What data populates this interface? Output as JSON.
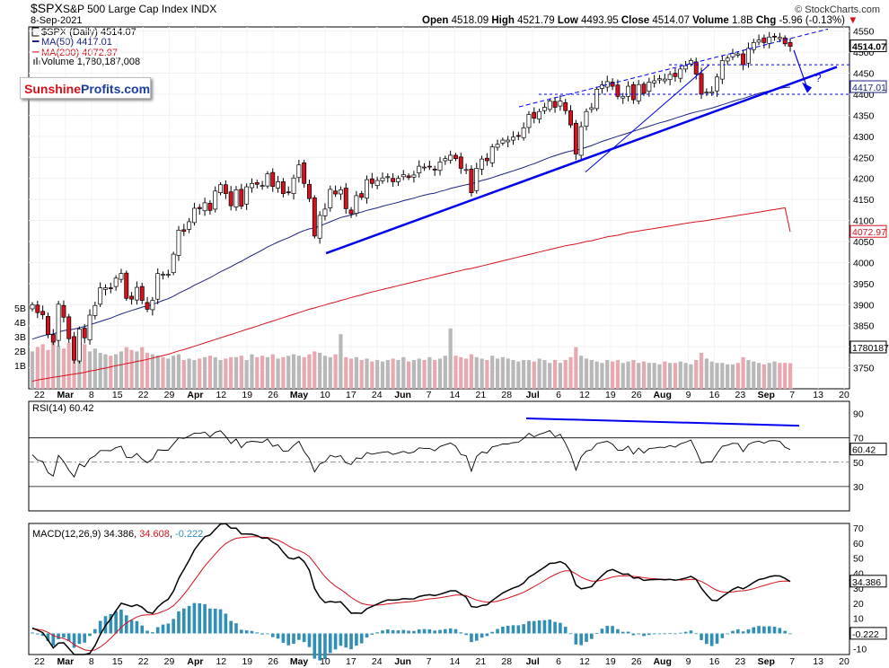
{
  "header": {
    "symbol": "$SPX",
    "name": "S&P 500 Large Cap Index",
    "exchange": "INDX",
    "date": "8-Sep-2021",
    "source": "© StockCharts.com",
    "open_label": "Open",
    "open": "4518.09",
    "high_label": "High",
    "high": "4521.79",
    "low_label": "Low",
    "low": "4493.95",
    "close_label": "Close",
    "close": "4514.07",
    "volume_label": "Volume",
    "volume": "1.8B",
    "chg_label": "Chg",
    "chg": "-5.96 (-0.13%)"
  },
  "legend": {
    "price": "$SPX (Daily) 4514.07",
    "ma50": "MA(50) 4417.01",
    "ma200": "MA(200) 4072.97",
    "volume": "Volume 1,780,187,008"
  },
  "logo": {
    "part1": "Sunshine",
    "part2": "Profits.com"
  },
  "price_labels": {
    "close": "4514.07",
    "ma50": "4417.01",
    "ma200": "4072.97",
    "volume": "1780187",
    "rsi": "60.42",
    "macd": "34.386",
    "hist": "-0.222"
  },
  "rsi_legend": "RSI(14) 60.42",
  "macd_legend": {
    "label": "MACD(12,26,9)",
    "macd": "34.386",
    "signal": "34.608",
    "hist": "-0.222"
  },
  "annotation_q": "?",
  "colors": {
    "up": "#ffffff",
    "down": "#d6101c",
    "ma50": "#1a237e",
    "ma200": "#d6101c",
    "trend": "#0000ee",
    "hist": "#2f8fb5",
    "vol_up": "#b8b8b8",
    "vol_down": "#e8a8b0"
  },
  "chart_data": {
    "type": "candlestick",
    "price_axis": {
      "ticks": [
        3750,
        3800,
        3850,
        3900,
        3950,
        4000,
        4050,
        4100,
        4150,
        4200,
        4250,
        4300,
        4350,
        4400,
        4450,
        4500,
        4550
      ],
      "range": [
        3700,
        4560
      ]
    },
    "volume_axis": {
      "ticks": [
        "1B",
        "2B",
        "3B",
        "4B",
        "5B"
      ]
    },
    "rsi_axis": {
      "ticks": [
        30,
        50,
        70,
        90
      ],
      "range": [
        10,
        100
      ]
    },
    "macd_axis": {
      "ticks": [
        -10,
        0,
        10,
        20,
        30,
        40,
        50,
        60,
        70
      ],
      "range": [
        -14,
        73
      ]
    },
    "x_labels": [
      "22",
      "Mar",
      "8",
      "15",
      "22",
      "29",
      "Apr",
      "12",
      "19",
      "26",
      "May",
      "10",
      "17",
      "24",
      "Jun",
      "7",
      "14",
      "21",
      "28",
      "Jul",
      "6",
      "12",
      "19",
      "26",
      "Aug",
      "9",
      "16",
      "23",
      "Sep",
      "7",
      "13",
      "20"
    ],
    "close": [
      3900,
      3881,
      3876,
      3829,
      3811,
      3901,
      3870,
      3819,
      3768,
      3842,
      3821,
      3875,
      3898,
      3940,
      3940,
      3939,
      3963,
      3974,
      3915,
      3913,
      3941,
      3910,
      3889,
      3910,
      3974,
      3972,
      3972,
      4020,
      4077,
      4074,
      4097,
      4129,
      4128,
      4142,
      4124,
      4170,
      4185,
      4164,
      4135,
      4173,
      4134,
      4180,
      4188,
      4186,
      4183,
      4211,
      4181,
      4192,
      4164,
      4167,
      4201,
      4232,
      4188,
      4152,
      4063,
      4112,
      4127,
      4174,
      4163,
      4173,
      4128,
      4116,
      4159,
      4155,
      4197,
      4188,
      4195,
      4201,
      4204,
      4192,
      4200,
      4209,
      4202,
      4208,
      4229,
      4227,
      4227,
      4220,
      4239,
      4247,
      4255,
      4247,
      4224,
      4221,
      4166,
      4224,
      4246,
      4242,
      4275,
      4281,
      4291,
      4291,
      4298,
      4300,
      4320,
      4352,
      4343,
      4359,
      4369,
      4384,
      4369,
      4384,
      4361,
      4327,
      4258,
      4323,
      4359,
      4368,
      4412,
      4422,
      4430,
      4419,
      4395,
      4395,
      4419,
      4387,
      4423,
      4402,
      4429,
      4432,
      4437,
      4436,
      4447,
      4442,
      4460,
      4468,
      4480,
      4448,
      4400,
      4405,
      4406,
      4441,
      4480,
      4486,
      4497,
      4496,
      4470,
      4509,
      4523,
      4529,
      4523,
      4536,
      4537,
      4535,
      4520,
      4514
    ],
    "ma50": [
      3818,
      3822,
      3826,
      3829,
      3830,
      3835,
      3838,
      3840,
      3842,
      3845,
      3848,
      3852,
      3856,
      3860,
      3864,
      3868,
      3873,
      3878,
      3882,
      3886,
      3890,
      3894,
      3897,
      3900,
      3905,
      3910,
      3914,
      3920,
      3927,
      3933,
      3939,
      3946,
      3952,
      3958,
      3964,
      3971,
      3978,
      3984,
      3990,
      3997,
      4003,
      4010,
      4017,
      4023,
      4030,
      4037,
      4043,
      4049,
      4054,
      4059,
      4065,
      4071,
      4076,
      4080,
      4082,
      4087,
      4092,
      4097,
      4102,
      4107,
      4110,
      4113,
      4117,
      4120,
      4124,
      4127,
      4130,
      4134,
      4137,
      4140,
      4143,
      4147,
      4150,
      4153,
      4157,
      4160,
      4163,
      4165,
      4169,
      4172,
      4176,
      4179,
      4182,
      4185,
      4187,
      4191,
      4195,
      4198,
      4202,
      4206,
      4210,
      4214,
      4218,
      4222,
      4226,
      4231,
      4235,
      4240,
      4245,
      4250,
      4254,
      4258,
      4262,
      4265,
      4267,
      4270,
      4274,
      4278,
      4283,
      4288,
      4292,
      4296,
      4300,
      4304,
      4308,
      4312,
      4316,
      4320,
      4324,
      4328,
      4332,
      4335,
      4339,
      4343,
      4347,
      4351,
      4355,
      4358,
      4361,
      4364,
      4367,
      4371,
      4375,
      4379,
      4383,
      4387,
      4390,
      4394,
      4398,
      4402,
      4405,
      4408,
      4411,
      4414,
      4416,
      4417
    ],
    "ma200": [
      3718,
      3721,
      3723,
      3725,
      3727,
      3729,
      3731,
      3733,
      3735,
      3737,
      3739,
      3742,
      3744,
      3747,
      3749,
      3752,
      3755,
      3757,
      3760,
      3762,
      3765,
      3767,
      3770,
      3773,
      3776,
      3779,
      3782,
      3786,
      3790,
      3793,
      3797,
      3801,
      3805,
      3809,
      3813,
      3817,
      3821,
      3825,
      3829,
      3833,
      3837,
      3841,
      3845,
      3849,
      3853,
      3857,
      3861,
      3865,
      3869,
      3873,
      3877,
      3881,
      3885,
      3889,
      3892,
      3896,
      3899,
      3903,
      3906,
      3910,
      3913,
      3917,
      3920,
      3923,
      3927,
      3930,
      3933,
      3936,
      3939,
      3942,
      3945,
      3948,
      3951,
      3954,
      3957,
      3960,
      3963,
      3966,
      3969,
      3972,
      3975,
      3978,
      3981,
      3984,
      3986,
      3989,
      3992,
      3995,
      3998,
      4001,
      4004,
      4007,
      4010,
      4013,
      4016,
      4019,
      4022,
      4025,
      4028,
      4031,
      4034,
      4037,
      4040,
      4042,
      4044,
      4047,
      4050,
      4052,
      4055,
      4058,
      4061,
      4063,
      4065,
      4068,
      4071,
      4073,
      4075,
      4077,
      4079,
      4081,
      4083,
      4085,
      4087,
      4089,
      4091,
      4093,
      4095,
      4097,
      4098,
      4100,
      4102,
      4104,
      4106,
      4108,
      4110,
      4112,
      4114,
      4116,
      4118,
      4120,
      4122,
      4124,
      4126,
      4128,
      4130,
      4073
    ],
    "volume_billions": [
      2.6,
      2.9,
      3.1,
      2.7,
      3.3,
      3.0,
      2.8,
      3.2,
      3.4,
      3.0,
      3.1,
      2.6,
      2.8,
      2.5,
      2.4,
      2.3,
      2.4,
      2.6,
      2.9,
      2.7,
      2.6,
      2.9,
      2.5,
      2.4,
      2.3,
      2.2,
      2.1,
      2.3,
      2.4,
      2.0,
      2.1,
      2.0,
      2.1,
      2.2,
      2.3,
      2.2,
      2.0,
      2.1,
      2.2,
      2.2,
      2.3,
      2.0,
      2.4,
      2.2,
      2.3,
      2.2,
      2.4,
      2.1,
      2.2,
      2.3,
      2.4,
      2.3,
      2.2,
      2.4,
      2.6,
      2.5,
      2.3,
      2.2,
      2.4,
      3.8,
      2.2,
      2.1,
      2.2,
      2.0,
      2.1,
      1.9,
      2.0,
      1.9,
      2.0,
      2.1,
      2.0,
      2.2,
      1.9,
      2.0,
      2.1,
      2.0,
      2.2,
      2.0,
      2.1,
      2.3,
      4.2,
      2.3,
      2.2,
      2.1,
      2.4,
      2.2,
      2.1,
      2.0,
      2.3,
      2.1,
      2.2,
      2.1,
      2.0,
      1.9,
      2.0,
      2.0,
      1.9,
      2.1,
      2.0,
      1.8,
      2.0,
      1.8,
      2.0,
      2.2,
      2.9,
      2.3,
      2.1,
      2.0,
      1.9,
      1.8,
      2.0,
      1.9,
      2.0,
      1.8,
      1.9,
      2.0,
      1.8,
      1.9,
      1.8,
      1.8,
      1.7,
      1.9,
      1.8,
      1.8,
      1.9,
      1.8,
      1.7,
      2.0,
      2.5,
      2.1,
      1.9,
      1.8,
      1.8,
      1.7,
      1.7,
      1.8,
      2.2,
      2.0,
      1.9,
      1.8,
      1.7,
      1.8,
      1.9,
      1.8,
      1.8,
      1.78
    ],
    "rsi_latest": 60.42,
    "macd_latest": 34.386,
    "signal_latest": 34.608,
    "hist_latest": -0.222
  }
}
